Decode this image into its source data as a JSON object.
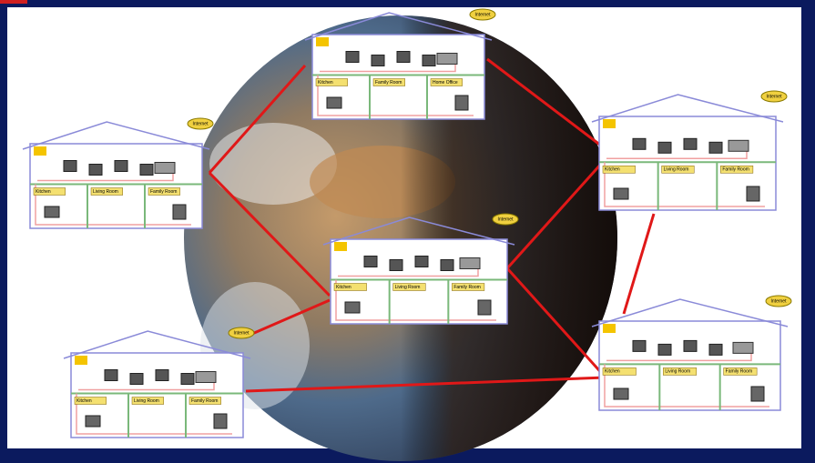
{
  "houses": [
    {
      "internet": "Internet",
      "rooms": [
        "Kitchen",
        "Family Room",
        "Home Office"
      ]
    },
    {
      "internet": "Internet",
      "rooms": [
        "Kitchen",
        "Living Room",
        "Family Room"
      ]
    },
    {
      "internet": "Internet",
      "rooms": [
        "Kitchen",
        "Living Room",
        "Family Room"
      ]
    },
    {
      "internet": "Internet",
      "rooms": [
        "Kitchen",
        "Living Room",
        "Family Room"
      ]
    },
    {
      "internet": "Internet",
      "rooms": [
        "Kitchen",
        "Living Room",
        "Family Room"
      ]
    },
    {
      "internet": "Internet",
      "rooms": [
        "Kitchen",
        "Living Room",
        "Family Room"
      ]
    }
  ]
}
